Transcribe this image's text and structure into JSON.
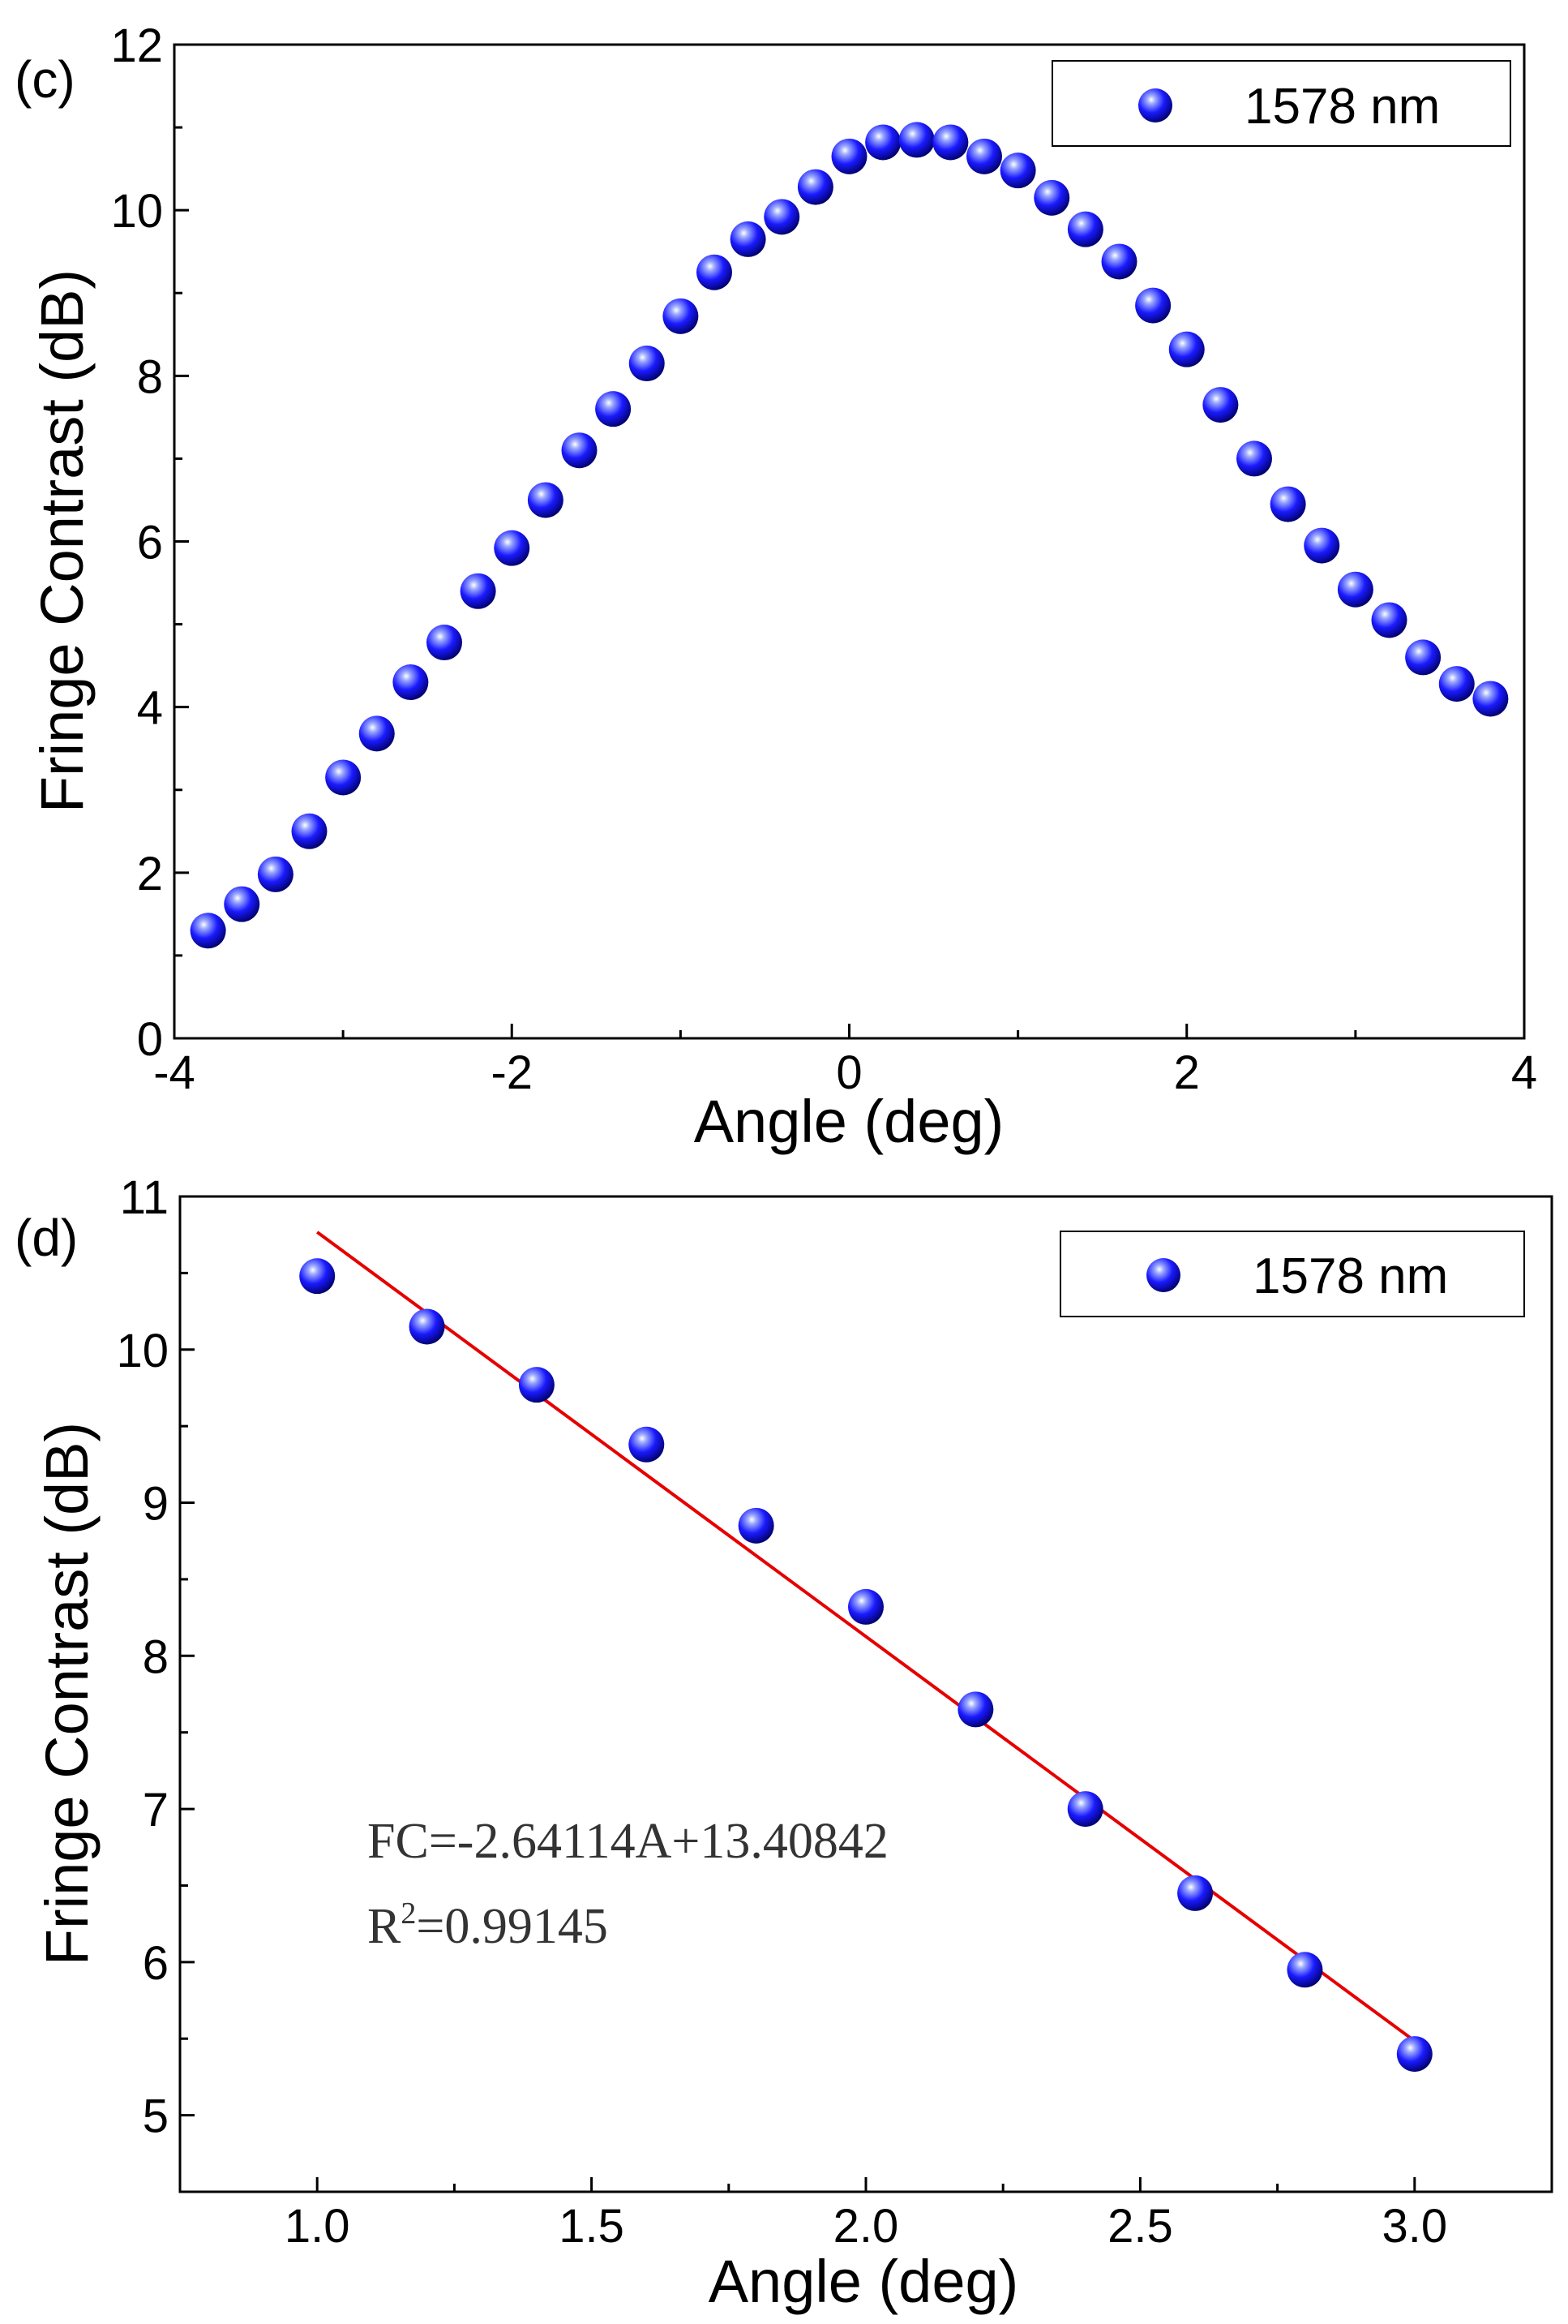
{
  "chart_data": [
    {
      "type": "scatter",
      "panel_label": "(c)",
      "xlabel": "Angle (deg)",
      "ylabel": "Fringe Contrast (dB)",
      "xlim": [
        -4,
        4
      ],
      "ylim": [
        0,
        12
      ],
      "xticks": [
        -4,
        -2,
        0,
        2,
        4
      ],
      "yticks": [
        0,
        2,
        4,
        6,
        8,
        10,
        12
      ],
      "legend_position": "top-right",
      "series": [
        {
          "name": "1578 nm",
          "color": "#1a1aff",
          "x": [
            -3.8,
            -3.6,
            -3.4,
            -3.2,
            -3.0,
            -2.8,
            -2.6,
            -2.4,
            -2.2,
            -2.0,
            -1.8,
            -1.6,
            -1.4,
            -1.2,
            -1.0,
            -0.8,
            -0.6,
            -0.4,
            -0.2,
            0.0,
            0.2,
            0.4,
            0.6,
            0.8,
            1.0,
            1.2,
            1.4,
            1.6,
            1.8,
            2.0,
            2.2,
            2.4,
            2.6,
            2.8,
            3.0,
            3.2,
            3.4,
            3.6,
            3.8
          ],
          "y": [
            1.3,
            1.62,
            1.98,
            2.5,
            3.15,
            3.68,
            4.3,
            4.78,
            5.4,
            5.92,
            6.5,
            7.1,
            7.6,
            8.15,
            8.72,
            9.25,
            9.65,
            9.92,
            10.28,
            10.65,
            10.82,
            10.85,
            10.82,
            10.65,
            10.48,
            10.15,
            9.77,
            9.38,
            8.85,
            8.32,
            7.65,
            7.0,
            6.45,
            5.95,
            5.42,
            5.05,
            4.6,
            4.28,
            4.1
          ]
        }
      ]
    },
    {
      "type": "scatter",
      "panel_label": "(d)",
      "xlabel": "Angle (deg)",
      "ylabel": "Fringe Contrast (dB)",
      "xlim": [
        0.75,
        3.25
      ],
      "ylim": [
        4.5,
        11
      ],
      "xticks": [
        1.0,
        1.5,
        2.0,
        2.5,
        3.0
      ],
      "xtick_labels": [
        "1.0",
        "1.5",
        "2.0",
        "2.5",
        "3.0"
      ],
      "yticks": [
        5,
        6,
        7,
        8,
        9,
        10,
        11
      ],
      "legend_position": "top-right",
      "series": [
        {
          "name": "1578 nm",
          "color": "#1a1aff",
          "x": [
            1.0,
            1.2,
            1.4,
            1.6,
            1.8,
            2.0,
            2.2,
            2.4,
            2.6,
            2.8,
            3.0
          ],
          "y": [
            10.48,
            10.15,
            9.77,
            9.38,
            8.85,
            8.32,
            7.65,
            7.0,
            6.45,
            5.95,
            5.4
          ]
        }
      ],
      "fit": {
        "slope": -2.64114,
        "intercept": 13.40842,
        "x_range": [
          1.0,
          3.0
        ],
        "color": "#e60000"
      },
      "annotation": {
        "equation": "FC=-2.64114A+13.40842",
        "r2_value": "=0.99145"
      }
    }
  ]
}
